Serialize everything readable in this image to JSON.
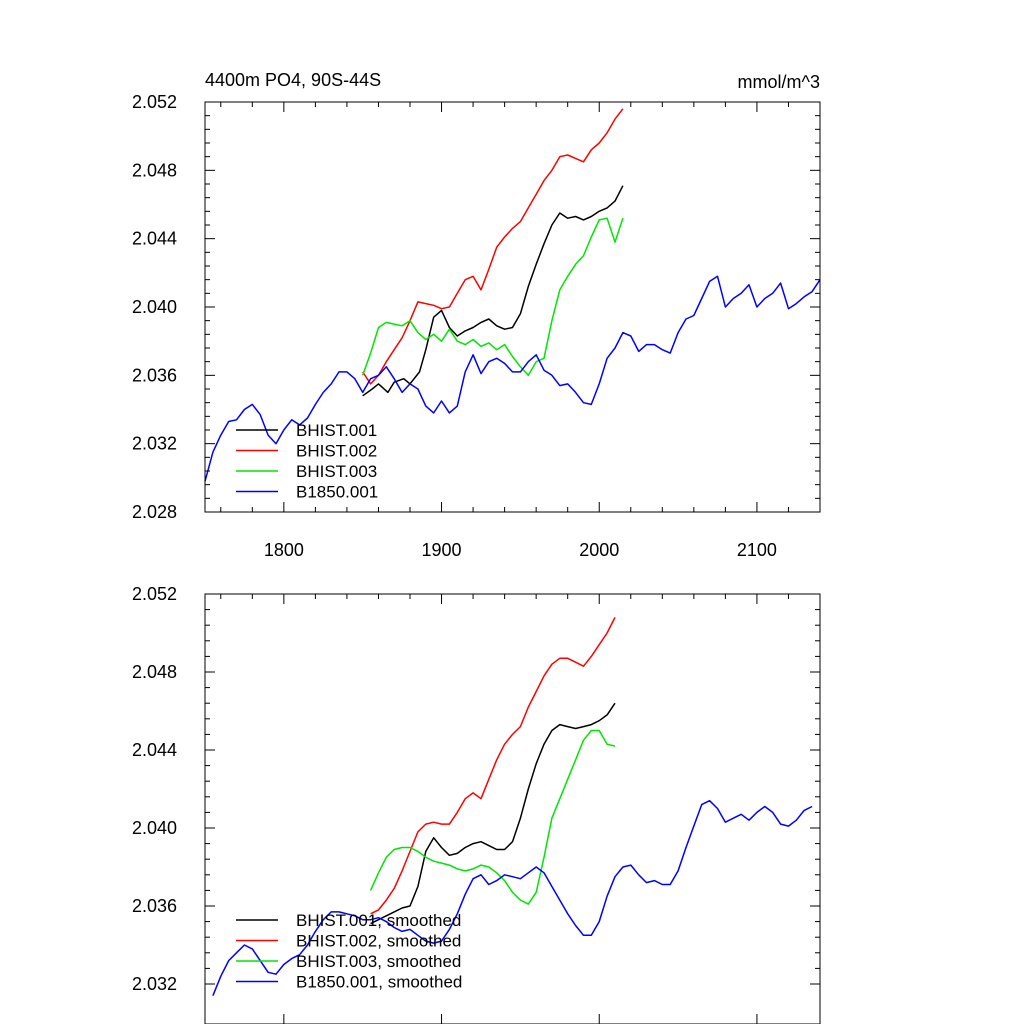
{
  "chart_data": [
    {
      "type": "line",
      "title": "4400m PO4, 90S-44S",
      "units": "mmol/m^3",
      "xlim": [
        1750,
        2140
      ],
      "ylim": [
        2.028,
        2.052
      ],
      "xticks": [
        1800,
        1900,
        2000,
        2100
      ],
      "xtick_labels": [
        "1800",
        "1900",
        "2000",
        "2100"
      ],
      "yticks": [
        2.028,
        2.032,
        2.036,
        2.04,
        2.044,
        2.048,
        2.052
      ],
      "ytick_labels": [
        "2.028",
        "2.032",
        "2.036",
        "2.040",
        "2.044",
        "2.048",
        "2.052"
      ],
      "grid": false,
      "legend_position": "bottom-left",
      "series": [
        {
          "name": "BHIST.001",
          "color": "#000000",
          "x": [
            1850,
            1856,
            1860,
            1866,
            1870,
            1876,
            1880,
            1886,
            1890,
            1895,
            1900,
            1905,
            1910,
            1915,
            1920,
            1925,
            1930,
            1935,
            1940,
            1945,
            1950,
            1955,
            1960,
            1965,
            1970,
            1975,
            1980,
            1985,
            1990,
            1995,
            2000,
            2005,
            2010,
            2015
          ],
          "y": [
            2.0348,
            2.0352,
            2.0355,
            2.035,
            2.0356,
            2.0358,
            2.0355,
            2.0362,
            2.0375,
            2.0394,
            2.0398,
            2.0388,
            2.0383,
            2.0386,
            2.0388,
            2.0391,
            2.0393,
            2.0389,
            2.0387,
            2.0388,
            2.0396,
            2.0412,
            2.0425,
            2.0437,
            2.0448,
            2.0455,
            2.0452,
            2.0453,
            2.0451,
            2.0453,
            2.0456,
            2.0458,
            2.0462,
            2.0471
          ]
        },
        {
          "name": "BHIST.002",
          "color": "#ff0000",
          "x": [
            1850,
            1855,
            1860,
            1865,
            1870,
            1875,
            1880,
            1885,
            1890,
            1895,
            1900,
            1905,
            1910,
            1915,
            1920,
            1925,
            1930,
            1935,
            1940,
            1945,
            1950,
            1955,
            1960,
            1965,
            1970,
            1975,
            1980,
            1985,
            1990,
            1995,
            2000,
            2005,
            2010,
            2015
          ],
          "y": [
            2.0362,
            2.0355,
            2.036,
            2.0368,
            2.0375,
            2.0382,
            2.0392,
            2.0403,
            2.0402,
            2.0401,
            2.0399,
            2.04,
            2.0408,
            2.0416,
            2.0418,
            2.041,
            2.0422,
            2.0435,
            2.0441,
            2.0446,
            2.045,
            2.0458,
            2.0466,
            2.0474,
            2.048,
            2.0488,
            2.0489,
            2.0487,
            2.0485,
            2.0492,
            2.0496,
            2.0502,
            2.051,
            2.0516
          ]
        },
        {
          "name": "BHIST.003",
          "color": "#00e600",
          "x": [
            1850,
            1855,
            1860,
            1865,
            1870,
            1875,
            1880,
            1885,
            1890,
            1895,
            1900,
            1905,
            1910,
            1915,
            1920,
            1925,
            1930,
            1935,
            1940,
            1945,
            1950,
            1955,
            1960,
            1965,
            1970,
            1975,
            1980,
            1985,
            1990,
            1995,
            2000,
            2005,
            2010,
            2015
          ],
          "y": [
            2.036,
            2.0373,
            2.0388,
            2.0391,
            2.039,
            2.0389,
            2.0392,
            2.0385,
            2.0381,
            2.0384,
            2.038,
            2.0387,
            2.038,
            2.0378,
            2.0381,
            2.0377,
            2.0379,
            2.0375,
            2.0378,
            2.0371,
            2.0365,
            2.036,
            2.0368,
            2.037,
            2.0392,
            2.041,
            2.0418,
            2.0425,
            2.043,
            2.0441,
            2.0451,
            2.0452,
            2.0438,
            2.0452
          ]
        },
        {
          "name": "B1850.001",
          "color": "#0000ff",
          "x": [
            1750,
            1755,
            1760,
            1765,
            1770,
            1775,
            1780,
            1785,
            1790,
            1795,
            1800,
            1805,
            1810,
            1815,
            1820,
            1825,
            1830,
            1835,
            1840,
            1845,
            1850,
            1855,
            1860,
            1865,
            1870,
            1875,
            1880,
            1885,
            1890,
            1895,
            1900,
            1905,
            1910,
            1915,
            1920,
            1925,
            1930,
            1935,
            1940,
            1945,
            1950,
            1955,
            1960,
            1965,
            1970,
            1975,
            1980,
            1985,
            1990,
            1995,
            2000,
            2005,
            2010,
            2015,
            2020,
            2025,
            2030,
            2035,
            2040,
            2045,
            2050,
            2055,
            2060,
            2065,
            2070,
            2075,
            2080,
            2085,
            2090,
            2095,
            2100,
            2105,
            2110,
            2115,
            2120,
            2125,
            2130,
            2135,
            2140
          ],
          "y": [
            2.0298,
            2.0315,
            2.0325,
            2.0333,
            2.0334,
            2.034,
            2.0343,
            2.0337,
            2.0325,
            2.032,
            2.0328,
            2.0334,
            2.0331,
            2.0335,
            2.0343,
            2.035,
            2.0355,
            2.0362,
            2.0362,
            2.0358,
            2.035,
            2.0358,
            2.036,
            2.0365,
            2.0358,
            2.035,
            2.0355,
            2.0352,
            2.0342,
            2.0338,
            2.0345,
            2.0338,
            2.0342,
            2.0362,
            2.0372,
            2.0361,
            2.0368,
            2.037,
            2.0367,
            2.0362,
            2.0362,
            2.0368,
            2.0372,
            2.0363,
            2.036,
            2.0354,
            2.0355,
            2.035,
            2.0344,
            2.0343,
            2.0355,
            2.037,
            2.0376,
            2.0385,
            2.0383,
            2.0374,
            2.0378,
            2.0378,
            2.0375,
            2.0373,
            2.0385,
            2.0393,
            2.0395,
            2.0405,
            2.0415,
            2.0418,
            2.04,
            2.0405,
            2.0408,
            2.0413,
            2.04,
            2.0405,
            2.0408,
            2.0414,
            2.0399,
            2.0402,
            2.0406,
            2.0409,
            2.0416
          ]
        }
      ]
    },
    {
      "type": "line",
      "xlim": [
        1750,
        2140
      ],
      "ylim": [
        2.032,
        2.052
      ],
      "xticks": [
        1800,
        1900,
        2000,
        2100
      ],
      "yticks": [
        2.032,
        2.036,
        2.04,
        2.044,
        2.048,
        2.052
      ],
      "ytick_labels": [
        "2.032",
        "2.036",
        "2.040",
        "2.044",
        "2.048",
        "2.052"
      ],
      "grid": false,
      "legend_position": "bottom-left",
      "series": [
        {
          "name": "BHIST.001, smoothed",
          "color": "#000000",
          "x": [
            1855,
            1860,
            1865,
            1870,
            1875,
            1880,
            1885,
            1890,
            1895,
            1900,
            1905,
            1910,
            1915,
            1920,
            1925,
            1930,
            1935,
            1940,
            1945,
            1950,
            1955,
            1960,
            1965,
            1970,
            1975,
            1980,
            1985,
            1990,
            1995,
            2000,
            2005,
            2010
          ],
          "y": [
            2.0351,
            2.0353,
            2.0355,
            2.0357,
            2.0359,
            2.036,
            2.037,
            2.0388,
            2.0395,
            2.039,
            2.0386,
            2.0387,
            2.039,
            2.0392,
            2.0393,
            2.0391,
            2.0389,
            2.0389,
            2.0393,
            2.0405,
            2.042,
            2.0433,
            2.0443,
            2.045,
            2.0453,
            2.0452,
            2.0451,
            2.0452,
            2.0453,
            2.0455,
            2.0458,
            2.0464
          ]
        },
        {
          "name": "BHIST.002, smoothed",
          "color": "#ff0000",
          "x": [
            1855,
            1860,
            1865,
            1870,
            1875,
            1880,
            1885,
            1890,
            1895,
            1900,
            1905,
            1910,
            1915,
            1920,
            1925,
            1930,
            1935,
            1940,
            1945,
            1950,
            1955,
            1960,
            1965,
            1970,
            1975,
            1980,
            1985,
            1990,
            1995,
            2000,
            2005,
            2010
          ],
          "y": [
            2.0356,
            2.0358,
            2.0363,
            2.0369,
            2.0378,
            2.0388,
            2.0398,
            2.0402,
            2.0403,
            2.0402,
            2.0402,
            2.0408,
            2.0415,
            2.0418,
            2.0415,
            2.0425,
            2.0435,
            2.0443,
            2.0448,
            2.0452,
            2.0462,
            2.047,
            2.0478,
            2.0484,
            2.0487,
            2.0487,
            2.0485,
            2.0483,
            2.0488,
            2.0494,
            2.05,
            2.0508
          ]
        },
        {
          "name": "BHIST.003, smoothed",
          "color": "#00e600",
          "x": [
            1855,
            1860,
            1865,
            1870,
            1875,
            1880,
            1885,
            1890,
            1895,
            1900,
            1905,
            1910,
            1915,
            1920,
            1925,
            1930,
            1935,
            1940,
            1945,
            1950,
            1955,
            1960,
            1965,
            1970,
            1975,
            1980,
            1985,
            1990,
            1995,
            2000,
            2005,
            2010
          ],
          "y": [
            2.0368,
            2.0377,
            2.0385,
            2.0389,
            2.039,
            2.039,
            2.0388,
            2.0385,
            2.0383,
            2.0382,
            2.0381,
            2.0379,
            2.0378,
            2.0379,
            2.0381,
            2.038,
            2.0377,
            2.0373,
            2.0367,
            2.0363,
            2.0361,
            2.0367,
            2.0385,
            2.0405,
            2.0415,
            2.0425,
            2.0435,
            2.0445,
            2.045,
            2.045,
            2.0443,
            2.0442
          ]
        },
        {
          "name": "B1850.001, smoothed",
          "color": "#0000ff",
          "x": [
            1755,
            1760,
            1765,
            1770,
            1775,
            1780,
            1785,
            1790,
            1795,
            1800,
            1805,
            1810,
            1815,
            1820,
            1825,
            1830,
            1835,
            1840,
            1845,
            1850,
            1855,
            1860,
            1865,
            1870,
            1875,
            1880,
            1885,
            1890,
            1895,
            1900,
            1905,
            1910,
            1915,
            1920,
            1925,
            1930,
            1935,
            1940,
            1945,
            1950,
            1955,
            1960,
            1965,
            1970,
            1975,
            1980,
            1985,
            1990,
            1995,
            2000,
            2005,
            2010,
            2015,
            2020,
            2025,
            2030,
            2035,
            2040,
            2045,
            2050,
            2055,
            2060,
            2065,
            2070,
            2075,
            2080,
            2085,
            2090,
            2095,
            2100,
            2105,
            2110,
            2115,
            2120,
            2125,
            2130,
            2135
          ],
          "y": [
            2.0314,
            2.0324,
            2.0332,
            2.0336,
            2.034,
            2.0338,
            2.0332,
            2.0326,
            2.0325,
            2.033,
            2.0333,
            2.0335,
            2.034,
            2.0347,
            2.0353,
            2.0357,
            2.0357,
            2.0356,
            2.0355,
            2.0353,
            2.0353,
            2.0354,
            2.0352,
            2.0349,
            2.0347,
            2.0348,
            2.0345,
            2.0342,
            2.0341,
            2.0342,
            2.0348,
            2.0356,
            2.0366,
            2.0374,
            2.0376,
            2.0371,
            2.0373,
            2.0376,
            2.0375,
            2.0374,
            2.0377,
            2.038,
            2.0377,
            2.037,
            2.0363,
            2.0356,
            2.035,
            2.0345,
            2.0345,
            2.0352,
            2.0365,
            2.0375,
            2.038,
            2.0381,
            2.0376,
            2.0372,
            2.0373,
            2.0371,
            2.0371,
            2.0378,
            2.039,
            2.0401,
            2.0412,
            2.0414,
            2.041,
            2.0403,
            2.0405,
            2.0407,
            2.0404,
            2.0408,
            2.0411,
            2.0408,
            2.0402,
            2.0401,
            2.0404,
            2.0409,
            2.0411
          ]
        }
      ]
    }
  ]
}
